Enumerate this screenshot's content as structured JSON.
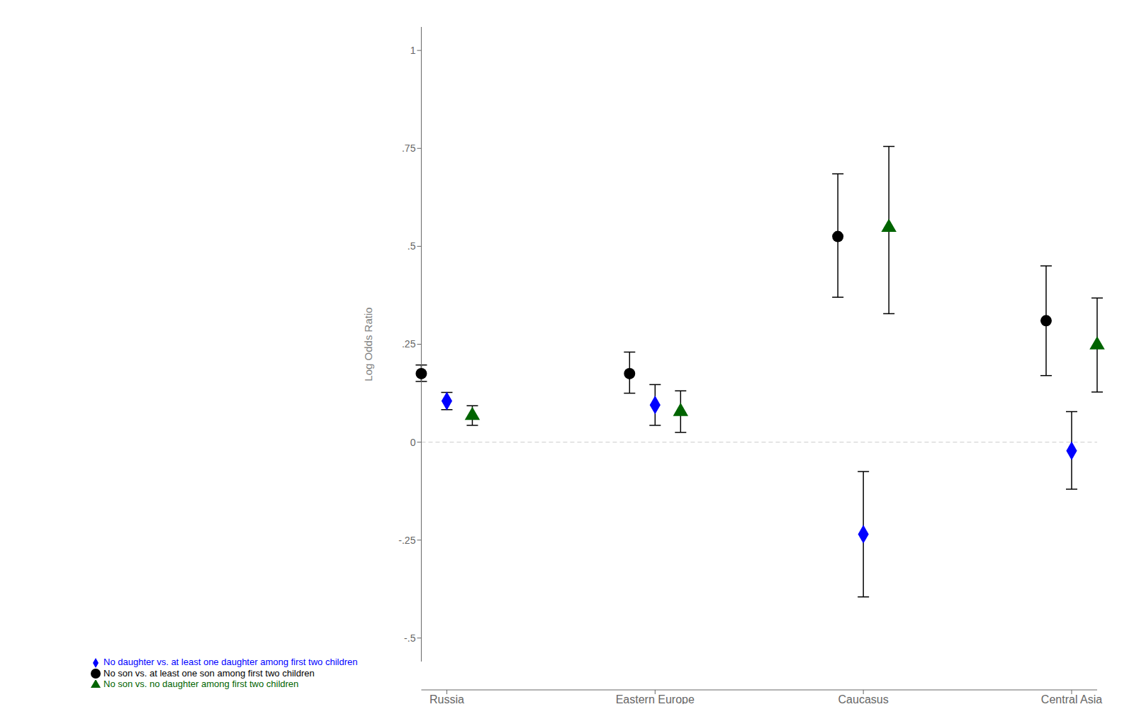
{
  "chart_data": {
    "type": "scatter",
    "categories": [
      "Russia",
      "Eastern Europe",
      "Caucasus",
      "Central Asia"
    ],
    "series": [
      {
        "name": "No son vs. at least one son among first two children",
        "color": "#000000",
        "marker": "circle",
        "values": [
          0.175,
          0.175,
          0.525,
          0.31
        ],
        "y_low": [
          0.155,
          0.125,
          0.37,
          0.17
        ],
        "y_high": [
          0.197,
          0.23,
          0.685,
          0.45
        ]
      },
      {
        "name": "No daughter vs. at least one daughter among first two children",
        "color": "#0000FF",
        "marker": "diamond",
        "values": [
          0.105,
          0.095,
          -0.235,
          -0.022
        ],
        "y_low": [
          0.083,
          0.043,
          -0.395,
          -0.12
        ],
        "y_high": [
          0.127,
          0.147,
          -0.075,
          0.078
        ]
      },
      {
        "name": "No son vs. no daughter among first two children",
        "color": "#006400",
        "marker": "triangle",
        "values": [
          0.068,
          0.078,
          0.548,
          0.248
        ],
        "y_low": [
          0.043,
          0.025,
          0.328,
          0.128
        ],
        "y_high": [
          0.093,
          0.131,
          0.755,
          0.368
        ]
      }
    ],
    "ylabel": "Log Odds Ratio",
    "ylim": [
      -0.56,
      1.06
    ],
    "yticks": [
      {
        "value": -0.5,
        "label": "-.5"
      },
      {
        "value": -0.25,
        "label": "-.25"
      },
      0,
      {
        "value": 0.25,
        "label": ".25"
      },
      {
        "value": 0.5,
        "label": ".5"
      },
      {
        "value": 0.75,
        "label": ".75"
      },
      1
    ],
    "grid": false,
    "legend": "lower left",
    "reference_lines": [
      {
        "y": 0,
        "line_style": "dashed"
      }
    ]
  }
}
